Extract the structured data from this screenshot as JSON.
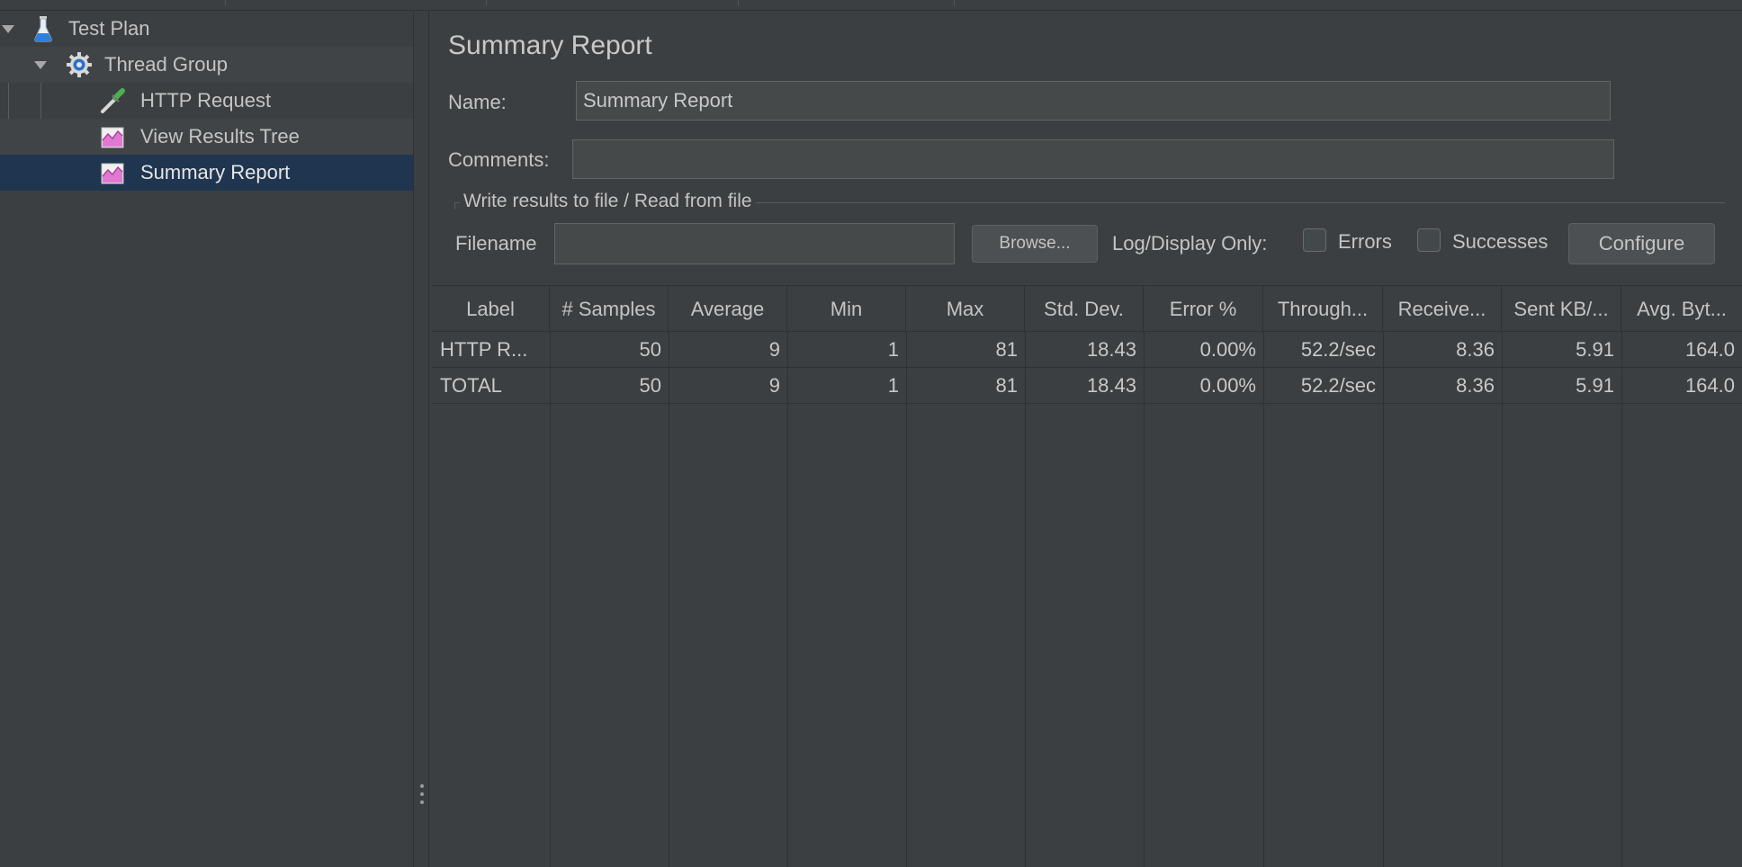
{
  "tree": {
    "items": [
      {
        "label": "Test Plan",
        "icon": "flask-icon"
      },
      {
        "label": "Thread Group",
        "icon": "gear-icon"
      },
      {
        "label": "HTTP Request",
        "icon": "pipette-icon"
      },
      {
        "label": "View Results Tree",
        "icon": "chart-icon"
      },
      {
        "label": "Summary Report",
        "icon": "chart-icon",
        "selected": true
      }
    ]
  },
  "panel": {
    "title": "Summary Report",
    "name_label": "Name:",
    "name_value": "Summary Report",
    "comments_label": "Comments:",
    "comments_value": "",
    "file_section_title": "Write results to file / Read from file",
    "filename_label": "Filename",
    "filename_value": "",
    "browse_label": "Browse...",
    "log_display_label": "Log/Display Only:",
    "errors_label": "Errors",
    "successes_label": "Successes",
    "configure_label": "Configure"
  },
  "table": {
    "columns": [
      "Label",
      "# Samples",
      "Average",
      "Min",
      "Max",
      "Std. Dev.",
      "Error %",
      "Through...",
      "Receive...",
      "Sent KB/...",
      "Avg. Byt..."
    ],
    "rows": [
      [
        "HTTP R...",
        "50",
        "9",
        "1",
        "81",
        "18.43",
        "0.00%",
        "52.2/sec",
        "8.36",
        "5.91",
        "164.0"
      ],
      [
        "TOTAL",
        "50",
        "9",
        "1",
        "81",
        "18.43",
        "0.00%",
        "52.2/sec",
        "8.36",
        "5.91",
        "164.0"
      ]
    ]
  },
  "colors": {
    "background": "#3c3f41",
    "selection": "#1f3550",
    "input_bg": "#45494a"
  }
}
